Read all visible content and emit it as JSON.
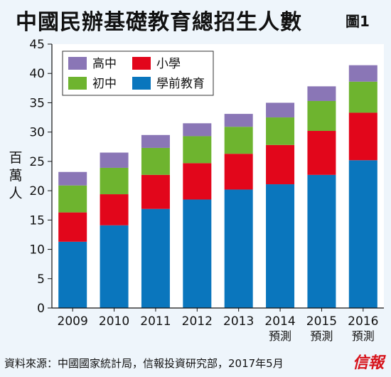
{
  "header": {
    "title": "中國民辦基礎教育總招生人數",
    "figure_label": "圖1"
  },
  "footer": {
    "source": "資料來源：中國國家統計局，信報投資研究部，2017年5月",
    "brand": "信報"
  },
  "chart_data": {
    "type": "bar",
    "stacked": true,
    "title": "中國民辦基礎教育總招生人數",
    "ylabel": "百萬人",
    "xlabel": "",
    "ylim": [
      0,
      45
    ],
    "yticks": [
      0,
      5,
      10,
      15,
      20,
      25,
      30,
      35,
      40,
      45
    ],
    "categories": [
      "2009",
      "2010",
      "2011",
      "2012",
      "2013",
      "2014",
      "2015",
      "2016"
    ],
    "category_sublabels": [
      "",
      "",
      "",
      "",
      "",
      "預測",
      "預測",
      "預測"
    ],
    "legend_placement": "top-left",
    "grid": false,
    "series": [
      {
        "name": "學前教育",
        "color": "#0a76bd",
        "values": [
          11.3,
          14.1,
          16.9,
          18.5,
          20.2,
          21.1,
          22.7,
          25.2
        ]
      },
      {
        "name": "小學",
        "color": "#e2061b",
        "values": [
          5.0,
          5.3,
          5.8,
          6.2,
          6.1,
          6.7,
          7.5,
          8.1
        ]
      },
      {
        "name": "初中",
        "color": "#6eb42f",
        "values": [
          4.6,
          4.5,
          4.6,
          4.6,
          4.6,
          4.7,
          5.1,
          5.3
        ]
      },
      {
        "name": "高中",
        "color": "#8a76b6",
        "values": [
          2.3,
          2.6,
          2.2,
          2.2,
          2.2,
          2.5,
          2.5,
          2.8
        ]
      }
    ],
    "legend_order": [
      "高中",
      "小學",
      "初中",
      "學前教育"
    ]
  }
}
